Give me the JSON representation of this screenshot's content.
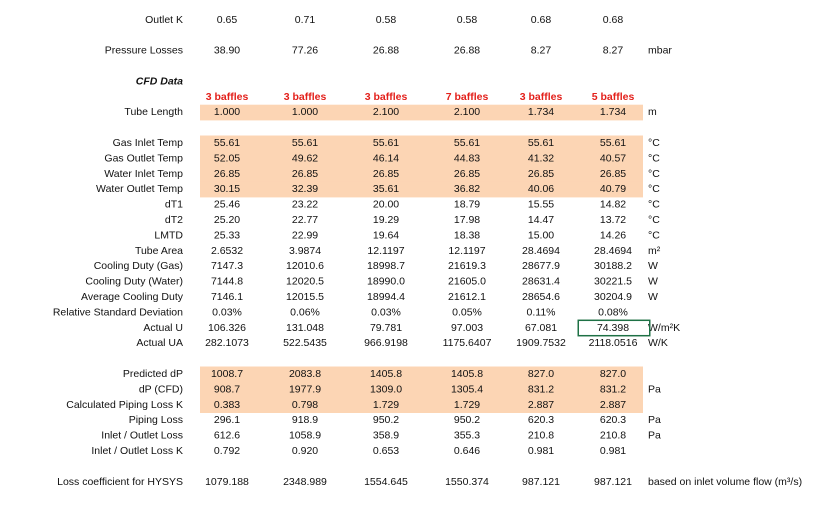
{
  "sections": [
    {
      "rows": [
        {
          "label": "Outlet K",
          "values": [
            "0.65",
            "0.71",
            "0.58",
            "0.58",
            "0.68",
            "0.68"
          ]
        }
      ]
    },
    {
      "rows": [
        {
          "label": "Pressure Losses",
          "values": [
            "38.90",
            "77.26",
            "26.88",
            "26.88",
            "8.27",
            "8.27"
          ],
          "unit": "mbar"
        }
      ]
    },
    {
      "heading": "CFD Data",
      "column_headers": [
        "3 baffles",
        "3 baffles",
        "3 baffles",
        "7 baffles",
        "3 baffles",
        "5 baffles"
      ],
      "rows": [
        {
          "label": "Tube Length",
          "values": [
            "1.000",
            "1.000",
            "2.100",
            "2.100",
            "1.734",
            "1.734"
          ],
          "unit": "m",
          "highlight": true
        }
      ]
    },
    {
      "rows": [
        {
          "label": "Gas Inlet Temp",
          "values": [
            "55.61",
            "55.61",
            "55.61",
            "55.61",
            "55.61",
            "55.61"
          ],
          "unit": "°C",
          "highlight": true
        },
        {
          "label": "Gas Outlet Temp",
          "values": [
            "52.05",
            "49.62",
            "46.14",
            "44.83",
            "41.32",
            "40.57"
          ],
          "unit": "°C",
          "highlight": true
        },
        {
          "label": "Water Inlet Temp",
          "values": [
            "26.85",
            "26.85",
            "26.85",
            "26.85",
            "26.85",
            "26.85"
          ],
          "unit": "°C",
          "highlight": true
        },
        {
          "label": "Water Outlet Temp",
          "values": [
            "30.15",
            "32.39",
            "35.61",
            "36.82",
            "40.06",
            "40.79"
          ],
          "unit": "°C",
          "highlight": true
        },
        {
          "label": "dT1",
          "values": [
            "25.46",
            "23.22",
            "20.00",
            "18.79",
            "15.55",
            "14.82"
          ],
          "unit": "°C"
        },
        {
          "label": "dT2",
          "values": [
            "25.20",
            "22.77",
            "19.29",
            "17.98",
            "14.47",
            "13.72"
          ],
          "unit": "°C"
        },
        {
          "label": "LMTD",
          "values": [
            "25.33",
            "22.99",
            "19.64",
            "18.38",
            "15.00",
            "14.26"
          ],
          "unit": "°C"
        },
        {
          "label": "Tube Area",
          "values": [
            "2.6532",
            "3.9874",
            "12.1197",
            "12.1197",
            "28.4694",
            "28.4694"
          ],
          "unit": "m²"
        },
        {
          "label": "Cooling Duty (Gas)",
          "values": [
            "7147.3",
            "12010.6",
            "18998.7",
            "21619.3",
            "28677.9",
            "30188.2"
          ],
          "unit": "W"
        },
        {
          "label": "Cooling Duty (Water)",
          "values": [
            "7144.8",
            "12020.5",
            "18990.0",
            "21605.0",
            "28631.4",
            "30221.5"
          ],
          "unit": "W"
        },
        {
          "label": "Average Cooling Duty",
          "values": [
            "7146.1",
            "12015.5",
            "18994.4",
            "21612.1",
            "28654.6",
            "30204.9"
          ],
          "unit": "W"
        },
        {
          "label": "Relative Standard Deviation",
          "values": [
            "0.03%",
            "0.06%",
            "0.03%",
            "0.05%",
            "0.11%",
            "0.08%"
          ]
        },
        {
          "label": "Actual U",
          "values": [
            "106.326",
            "131.048",
            "79.781",
            "97.003",
            "67.081",
            "74.398"
          ],
          "unit": "W/m²K",
          "selected": 5
        },
        {
          "label": "Actual UA",
          "values": [
            "282.1073",
            "522.5435",
            "966.9198",
            "1175.6407",
            "1909.7532",
            "2118.0516"
          ],
          "unit": "W/K"
        }
      ]
    },
    {
      "rows": [
        {
          "label": "Predicted dP",
          "values": [
            "1008.7",
            "2083.8",
            "1405.8",
            "1405.8",
            "827.0",
            "827.0"
          ],
          "highlight": true
        },
        {
          "label": "dP (CFD)",
          "values": [
            "908.7",
            "1977.9",
            "1309.0",
            "1305.4",
            "831.2",
            "831.2"
          ],
          "unit": "Pa",
          "highlight": true
        },
        {
          "label": "Calculated Piping Loss K",
          "values": [
            "0.383",
            "0.798",
            "1.729",
            "1.729",
            "2.887",
            "2.887"
          ],
          "highlight": true
        },
        {
          "label": "Piping Loss",
          "values": [
            "296.1",
            "918.9",
            "950.2",
            "950.2",
            "620.3",
            "620.3"
          ],
          "unit": "Pa"
        },
        {
          "label": "Inlet / Outlet Loss",
          "values": [
            "612.6",
            "1058.9",
            "358.9",
            "355.3",
            "210.8",
            "210.8"
          ],
          "unit": "Pa"
        },
        {
          "label": "Inlet / Outlet Loss K",
          "values": [
            "0.792",
            "0.920",
            "0.653",
            "0.646",
            "0.981",
            "0.981"
          ]
        }
      ]
    },
    {
      "rows": [
        {
          "label": "Loss coefficient for HYSYS",
          "values": [
            "1079.188",
            "2348.989",
            "1554.645",
            "1550.374",
            "987.121",
            "987.121"
          ],
          "unit": "based on inlet volume flow (m³/s)"
        }
      ]
    }
  ]
}
